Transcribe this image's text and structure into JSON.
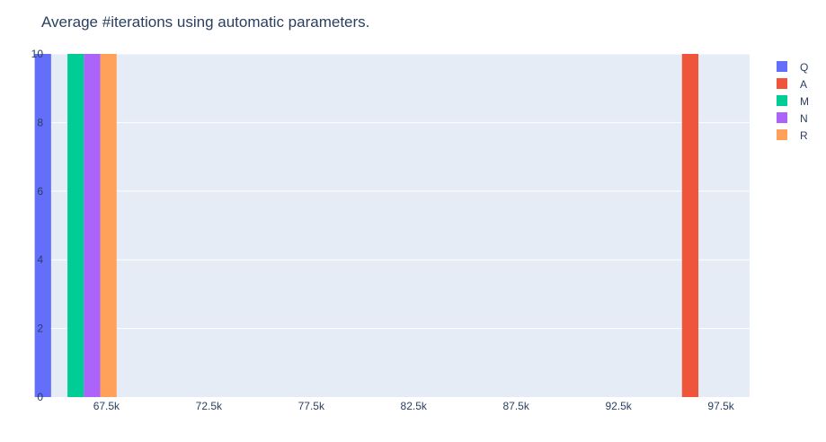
{
  "chart_data": {
    "type": "bar",
    "title": "Average #iterations using automatic parameters.",
    "xlabel": "",
    "ylabel": "",
    "xlim": [
      64500,
      98900
    ],
    "ylim": [
      0,
      10
    ],
    "x_ticks": [
      67500,
      72500,
      77500,
      82500,
      87500,
      92500,
      97500
    ],
    "x_tick_labels": [
      "67.5k",
      "72.5k",
      "77.5k",
      "82.5k",
      "87.5k",
      "92.5k",
      "97.5k"
    ],
    "y_ticks": [
      0,
      2,
      4,
      6,
      8,
      10
    ],
    "y_tick_labels": [
      "0",
      "2",
      "4",
      "6",
      "8",
      "10"
    ],
    "bar_group_width": 4000,
    "grid": true,
    "legend_position": "right",
    "series": [
      {
        "name": "Q",
        "color": "#636efa",
        "points": [
          {
            "x": 66000,
            "y": 10
          }
        ]
      },
      {
        "name": "A",
        "color": "#ef553b",
        "points": [
          {
            "x": 96800,
            "y": 10
          }
        ]
      },
      {
        "name": "M",
        "color": "#00cc96",
        "points": [
          {
            "x": 66000,
            "y": 10
          }
        ]
      },
      {
        "name": "N",
        "color": "#ab63fa",
        "points": [
          {
            "x": 66000,
            "y": 10
          }
        ]
      },
      {
        "name": "R",
        "color": "#ffa15a",
        "points": [
          {
            "x": 66000,
            "y": 10
          }
        ]
      }
    ]
  }
}
